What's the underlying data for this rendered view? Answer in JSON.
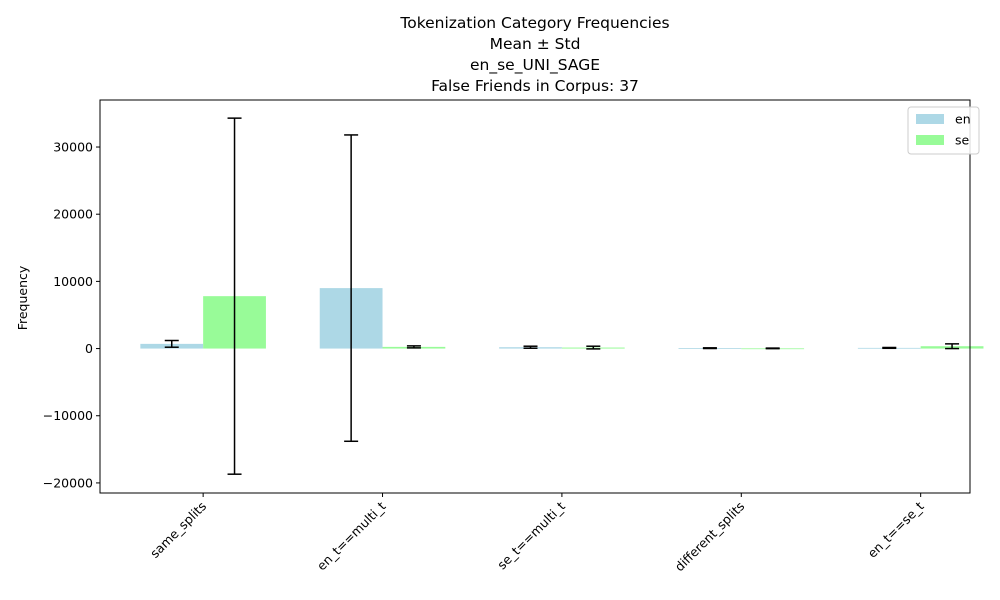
{
  "chart_data": {
    "type": "bar",
    "title_lines": [
      "Tokenization Category Frequencies",
      "Mean ± Std",
      "en_se_UNI_SAGE",
      "False Friends in Corpus: 37"
    ],
    "xlabel": "",
    "ylabel": "Frequency",
    "categories": [
      "same_splits",
      "en_t==multi_t",
      "se_t==multi_t",
      "different_splits",
      "en_t==se_t"
    ],
    "ylim": [
      -21500,
      37000
    ],
    "yticks": [
      -20000,
      -10000,
      0,
      10000,
      20000,
      30000
    ],
    "ytick_labels": [
      "−20000",
      "−10000",
      "0",
      "10000",
      "20000",
      "30000"
    ],
    "grid": false,
    "legend_position": "top-right",
    "series": [
      {
        "name": "en",
        "color": "#add8e6",
        "values": [
          700,
          9000,
          200,
          60,
          100
        ],
        "errors": [
          500,
          22800,
          150,
          50,
          60
        ]
      },
      {
        "name": "se",
        "color": "#98fb98",
        "values": [
          7800,
          250,
          150,
          30,
          350
        ],
        "errors": [
          26500,
          150,
          200,
          40,
          350
        ]
      }
    ]
  }
}
